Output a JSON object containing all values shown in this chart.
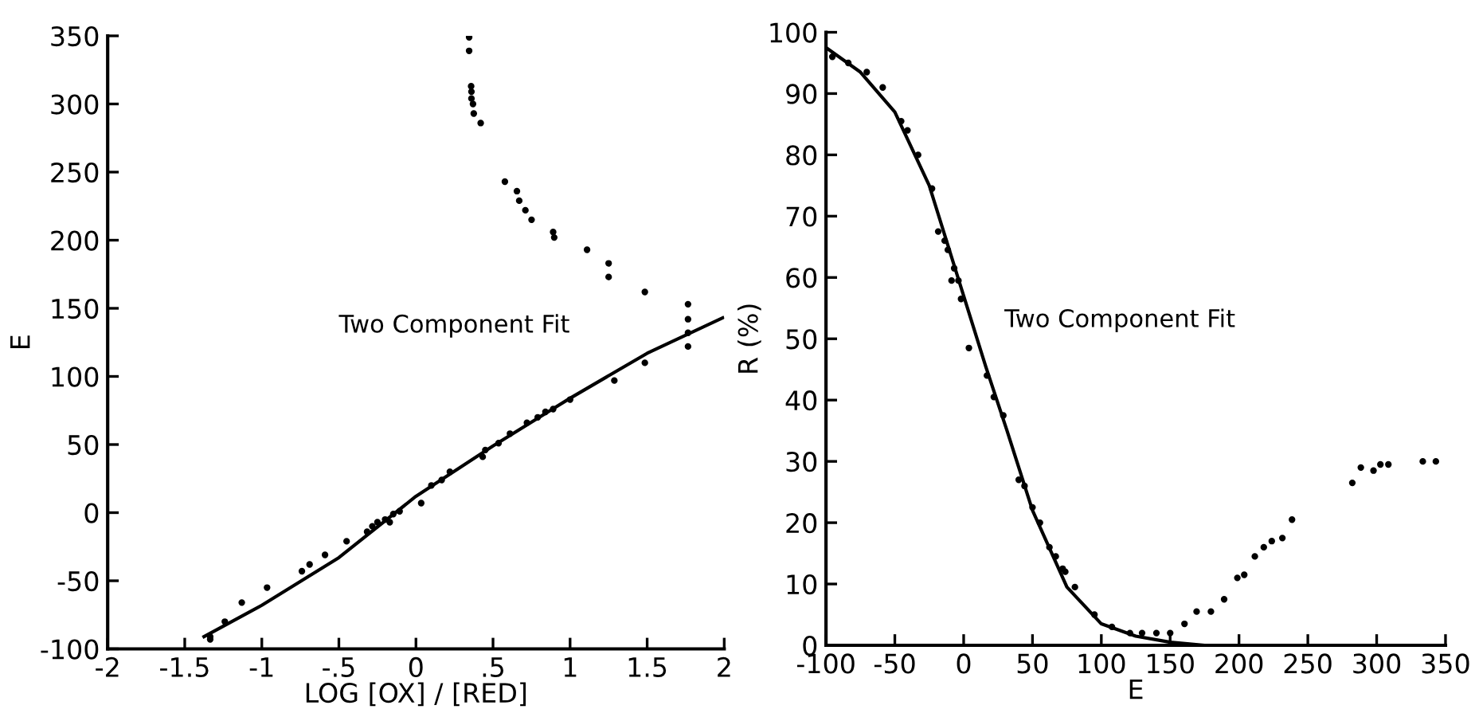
{
  "chart_data": [
    {
      "type": "scatter",
      "xlabel": "LOG [OX] / [RED]",
      "ylabel": "E",
      "annotations": [
        "Two Component Fit"
      ],
      "xlim": [
        -2,
        2
      ],
      "ylim": [
        -100,
        350
      ],
      "xticks": [
        -2,
        -1.5,
        -1,
        {
          "value": -0.5,
          "label": "-.5"
        },
        0,
        {
          "value": 0.5,
          "label": ".5"
        },
        1,
        1.5,
        2
      ],
      "yticks": [
        -100,
        -50,
        0,
        50,
        100,
        150,
        200,
        250,
        300,
        350
      ],
      "marker": "circle",
      "grid": false,
      "legend": false,
      "series": [
        {
          "color": "#000000",
          "x": [
            0.345,
            0.345,
            0.358,
            0.36,
            0.36,
            0.37,
            0.375,
            0.42,
            0.577,
            0.655,
            0.67,
            0.71,
            0.75,
            0.89,
            0.897,
            1.11,
            1.25,
            1.25,
            1.485,
            1.765,
            1.765,
            1.765,
            1.765,
            -1.335,
            -1.335,
            -1.24,
            -1.13,
            -0.966,
            -0.74,
            -0.69,
            -0.59,
            -0.45,
            -0.317,
            -0.283,
            -0.25,
            -0.2,
            -0.17,
            -0.147,
            -0.106,
            0.034,
            0.1,
            0.167,
            0.22,
            0.433,
            0.45,
            0.536,
            0.61,
            0.72,
            0.79,
            0.84,
            0.89,
            1.0,
            1.287,
            1.485
          ],
          "values": [
            349,
            339,
            313,
            309,
            304,
            300,
            293,
            286,
            243,
            236,
            229,
            222,
            215,
            206,
            202,
            193,
            183,
            173,
            162,
            153,
            142,
            132,
            122,
            -91,
            -93,
            -80,
            -66,
            -55,
            -43,
            -38,
            -31,
            -21,
            -14,
            -10,
            -7,
            -5,
            -7,
            -1,
            1,
            7,
            20,
            24,
            30,
            41,
            46,
            51,
            58,
            66,
            70,
            74,
            76,
            83,
            97,
            110
          ]
        },
        {
          "type": "line",
          "color": "#000000",
          "marker": "none",
          "x": [
            -1.375,
            -1,
            -0.5,
            0,
            0.5,
            1,
            1.5,
            1.99
          ],
          "values": [
            -91,
            -68,
            -33,
            12,
            49,
            84,
            117,
            143
          ]
        }
      ]
    },
    {
      "type": "scatter",
      "xlabel": "E",
      "ylabel": "R (%)",
      "annotations": [
        "Two Component Fit"
      ],
      "xlim": [
        -100,
        350
      ],
      "ylim": [
        0,
        100
      ],
      "xticks": [
        -100,
        -50,
        0,
        50,
        100,
        150,
        200,
        250,
        300,
        350
      ],
      "yticks": [
        0,
        10,
        20,
        30,
        40,
        50,
        60,
        70,
        80,
        90,
        100
      ],
      "marker": "circle",
      "grid": false,
      "legend": false,
      "series": [
        {
          "color": "#000000",
          "x": [
            -95.4,
            -83.8,
            -70.4,
            -58.8,
            -45.4,
            -40.8,
            -33.1,
            -23,
            -18.5,
            -13.8,
            -11.5,
            -6.9,
            -8.8,
            -3.8,
            -1.9,
            3.8,
            16.9,
            21.9,
            28.8,
            40,
            44.2,
            50,
            55.4,
            62.3,
            66.9,
            71.9,
            73.8,
            80.8,
            95,
            107.7,
            120.8,
            129.6,
            140,
            150,
            160.4,
            169.2,
            179.6,
            189.2,
            198.8,
            203.8,
            211.5,
            218,
            223.8,
            231.5,
            238.5,
            282.3,
            288.5,
            297.7,
            302.7,
            308.5,
            333.5,
            343
          ],
          "values": [
            96,
            95,
            93.5,
            91,
            85.5,
            84,
            80,
            74.5,
            67.5,
            66,
            64.5,
            61.5,
            59.5,
            59.5,
            56.5,
            48.5,
            44,
            40.5,
            37.5,
            27,
            26,
            22.5,
            20,
            16,
            14.5,
            12.5,
            12,
            9.5,
            5,
            3,
            2,
            2,
            2,
            2,
            3.5,
            5.5,
            5.5,
            7.5,
            11,
            11.5,
            14.5,
            16,
            17,
            17.5,
            20.5,
            26.5,
            29,
            28.5,
            29.5,
            29.5,
            30,
            30
          ]
        },
        {
          "type": "line",
          "color": "#000000",
          "marker": "none",
          "x": [
            -100,
            -75,
            -50,
            -25,
            0,
            16,
            31.5,
            50,
            75,
            100,
            125,
            150,
            175,
            190
          ],
          "values": [
            97.5,
            93.5,
            87,
            75,
            57,
            45.5,
            35,
            22,
            9.5,
            3.5,
            1.5,
            0.5,
            0,
            0
          ]
        }
      ]
    }
  ]
}
